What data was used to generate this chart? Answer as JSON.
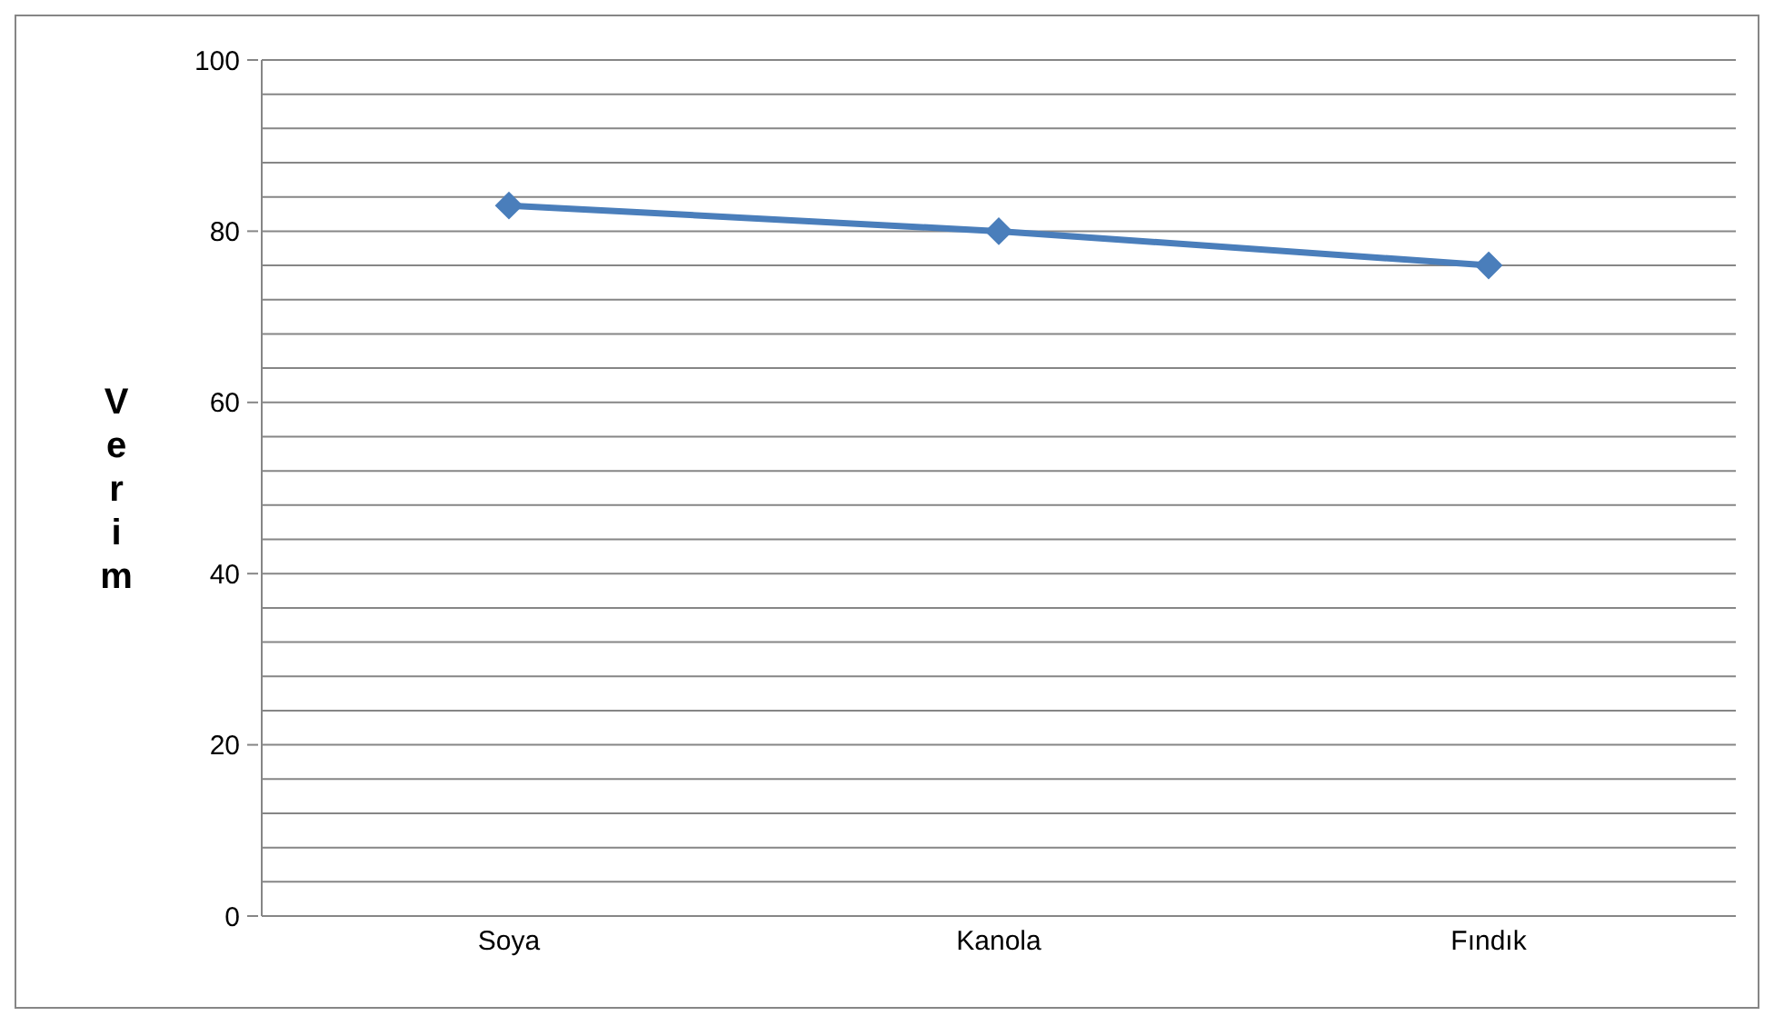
{
  "chart_data": {
    "type": "line",
    "ylabel": "Verim",
    "categories": [
      "Soya",
      "Kanola",
      "Fındık"
    ],
    "series": [
      {
        "color": "#4a7ebb",
        "values": [
          83,
          80,
          76
        ]
      }
    ],
    "ylim": [
      0,
      100
    ],
    "yticks": [
      0,
      {
        "value": 4,
        "label": null
      },
      {
        "value": 8,
        "label": null
      },
      {
        "value": 12,
        "label": null
      },
      {
        "value": 16,
        "label": null
      },
      20,
      {
        "value": 24,
        "label": null
      },
      {
        "value": 28,
        "label": null
      },
      {
        "value": 32,
        "label": null
      },
      {
        "value": 36,
        "label": null
      },
      40,
      {
        "value": 44,
        "label": null
      },
      {
        "value": 48,
        "label": null
      },
      {
        "value": 52,
        "label": null
      },
      {
        "value": 56,
        "label": null
      },
      60,
      {
        "value": 64,
        "label": null
      },
      {
        "value": 68,
        "label": null
      },
      {
        "value": 72,
        "label": null
      },
      {
        "value": 76,
        "label": null
      },
      80,
      {
        "value": 84,
        "label": null
      },
      {
        "value": 88,
        "label": null
      },
      {
        "value": 92,
        "label": null
      },
      {
        "value": 96,
        "label": null
      },
      100
    ],
    "grid": "y",
    "marker": "diamond",
    "line_style": "solid",
    "legend": false
  }
}
